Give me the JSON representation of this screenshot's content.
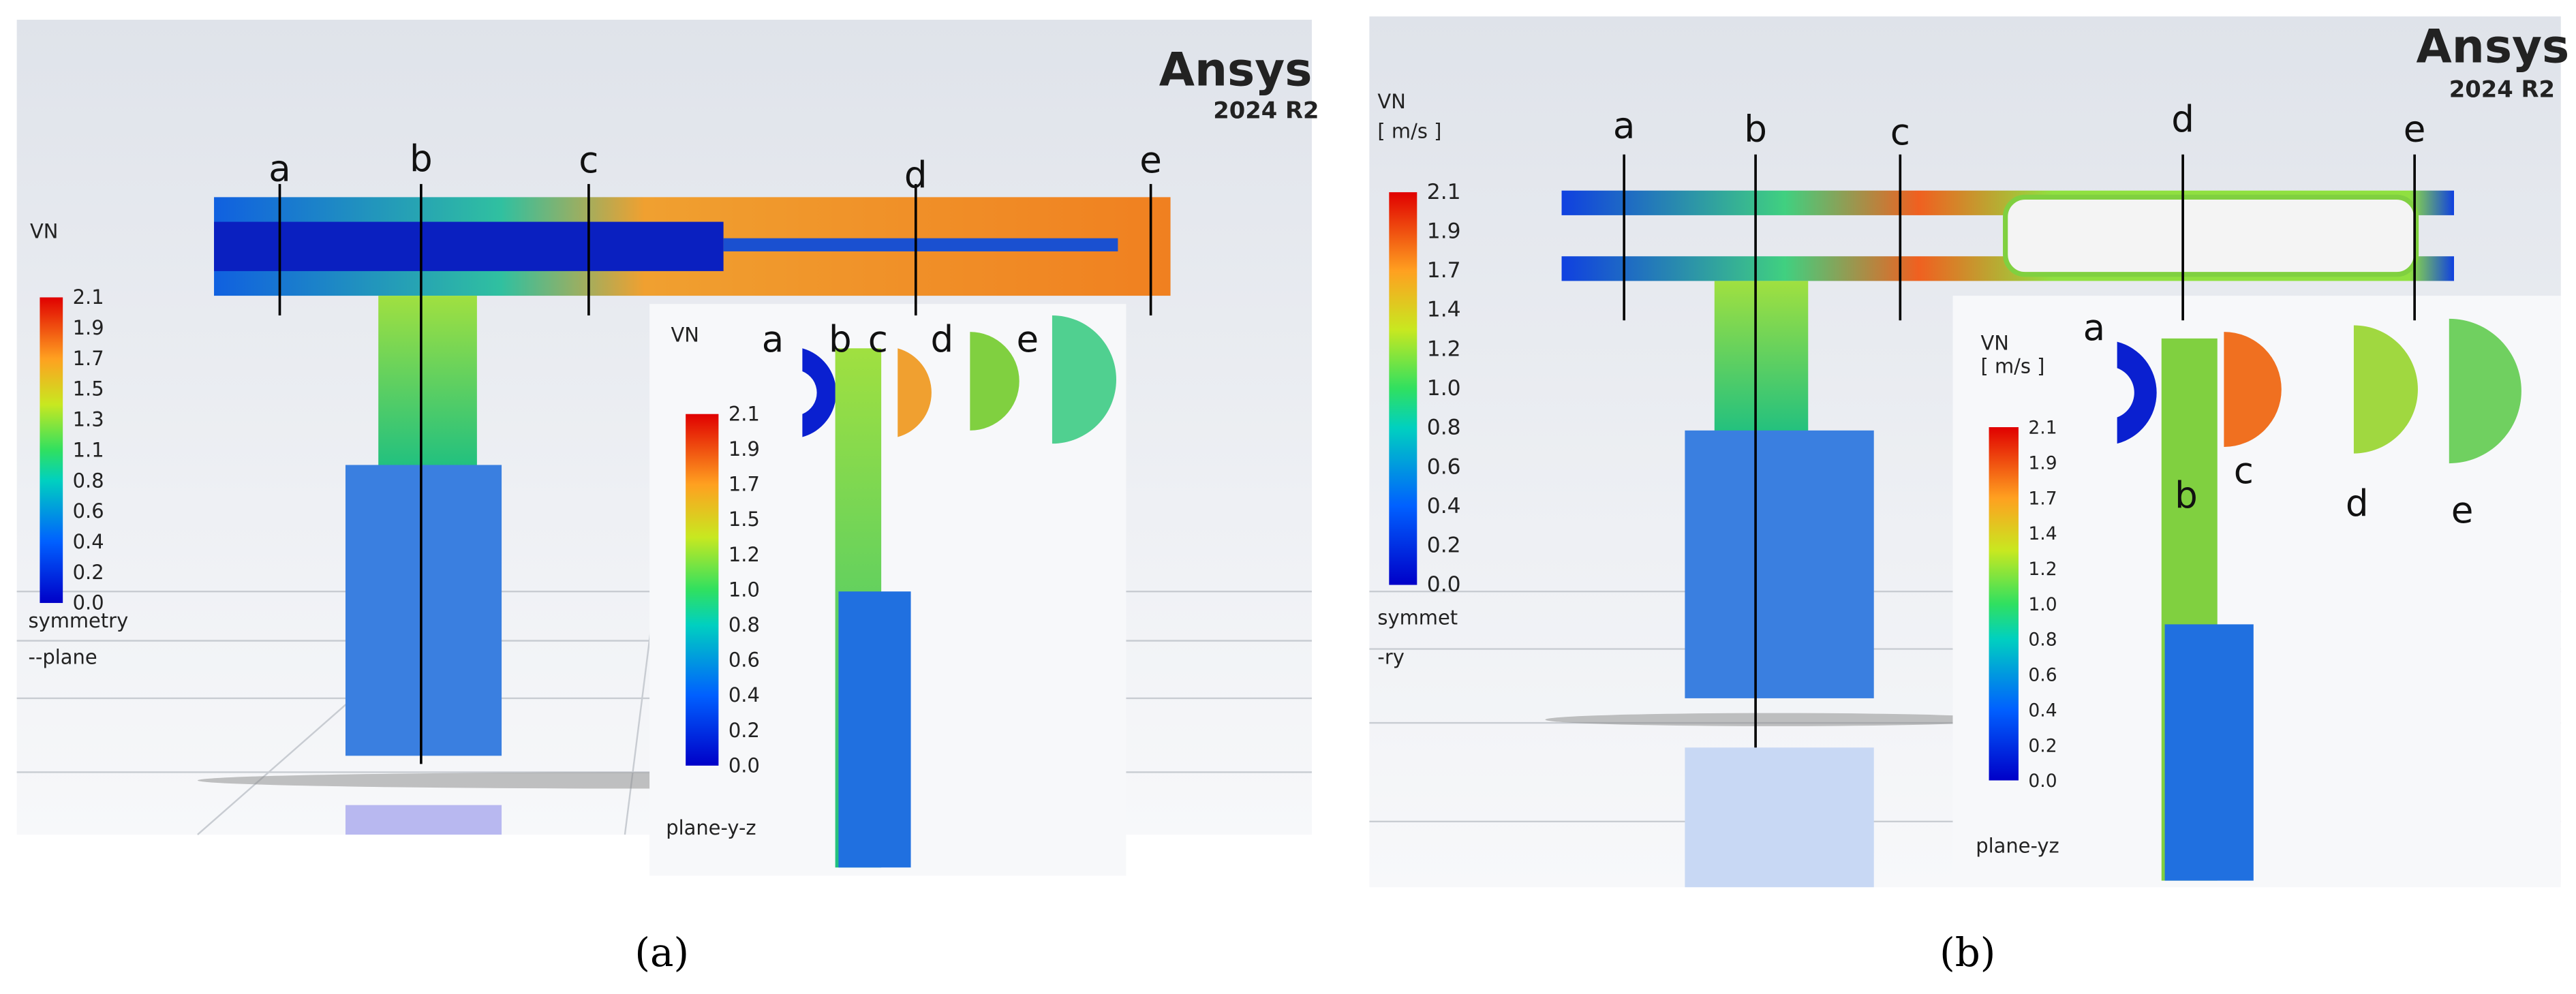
{
  "panel_a": {
    "logo": "Ansys",
    "version": "2024 R2",
    "colorbar_title": "VN",
    "colorbar_ticks": [
      "2.1",
      "1.9",
      "1.7",
      "1.5",
      "1.3",
      "1.1",
      "0.8",
      "0.6",
      "0.4",
      "0.2",
      "0.0"
    ],
    "plane_label": [
      "symmetry",
      "--plane"
    ],
    "sections": [
      "a",
      "b",
      "c",
      "d",
      "e"
    ],
    "inset": {
      "colorbar_title": "VN",
      "colorbar_ticks": [
        "2.1",
        "1.9",
        "1.7",
        "1.5",
        "1.2",
        "1.0",
        "0.8",
        "0.6",
        "0.4",
        "0.2",
        "0.0"
      ],
      "plane_label": "plane-y-z",
      "sections": [
        "a",
        "b",
        "c",
        "d",
        "e"
      ]
    },
    "caption": "(a)"
  },
  "panel_b": {
    "logo": "Ansys",
    "version": "2024 R2",
    "colorbar_title": [
      "VN",
      "[ m/s ]"
    ],
    "colorbar_ticks": [
      "2.1",
      "1.9",
      "1.7",
      "1.4",
      "1.2",
      "1.0",
      "0.8",
      "0.6",
      "0.4",
      "0.2",
      "0.0"
    ],
    "plane_label": [
      "symmet",
      "-ry"
    ],
    "sections": [
      "a",
      "b",
      "c",
      "d",
      "e"
    ],
    "inset": {
      "colorbar_title": [
        "VN",
        "[ m/s ]"
      ],
      "colorbar_ticks": [
        "2.1",
        "1.9",
        "1.7",
        "1.4",
        "1.2",
        "1.0",
        "0.8",
        "0.6",
        "0.4",
        "0.2",
        "0.0"
      ],
      "plane_label": "plane-yz",
      "sections": [
        "a",
        "b",
        "c",
        "d",
        "e"
      ]
    },
    "caption": "(b)"
  }
}
